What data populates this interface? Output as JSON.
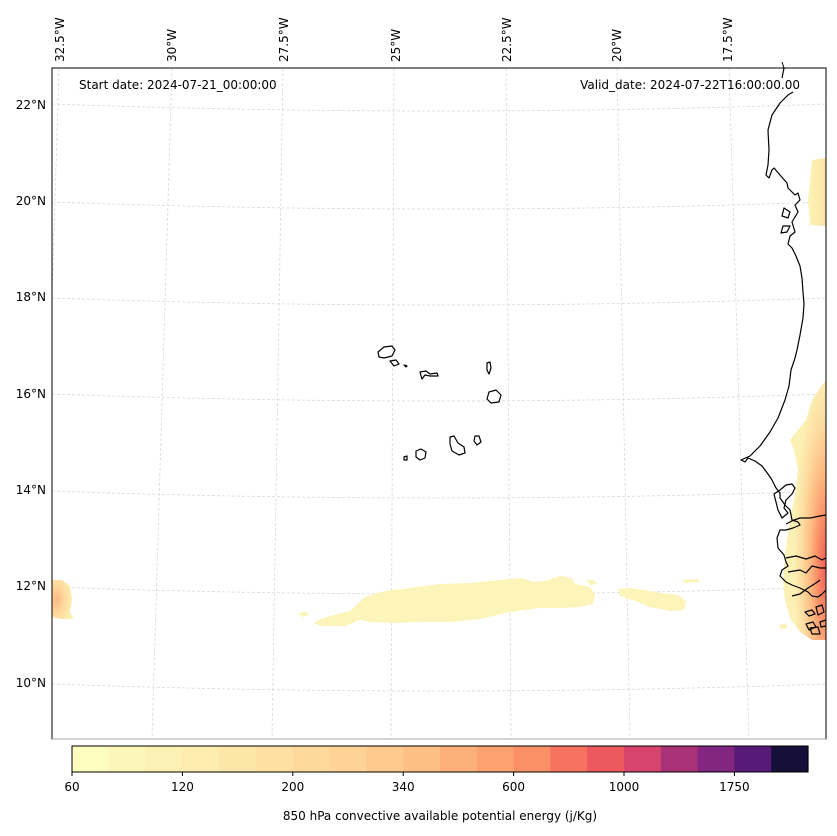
{
  "map": {
    "projection": "conic",
    "annotations": {
      "start_date": "Start date: 2024-07-21_00:00:00",
      "valid_date": "Valid_date: 2024-07-22T16:00:00.00"
    },
    "lon_labels": [
      "32.5°W",
      "30°W",
      "27.5°W",
      "25°W",
      "22.5°W",
      "20°W",
      "17.5°W"
    ],
    "lat_labels": [
      "22°N",
      "20°N",
      "18°N",
      "16°N",
      "14°N",
      "12°N",
      "10°N"
    ],
    "gridlines": true,
    "features": [
      "Cape Verde islands",
      "West African coastline (Mauritania, Senegal, Gambia, Guinea-Bissau)"
    ],
    "field": {
      "name": "850 hPa convective available potential energy",
      "regions": [
        {
          "name": "west-edge-blob",
          "approx_lat": 11.8,
          "approx_lon": -32.8,
          "max_level": 340
        },
        {
          "name": "central-band",
          "approx_lat": 11.7,
          "approx_lon_range": [
            -29.5,
            -21.0
          ],
          "max_level": 120
        },
        {
          "name": "eastern-small-patch",
          "approx_lat": 11.7,
          "approx_lon_range": [
            -20.0,
            -18.5
          ],
          "max_level": 90
        },
        {
          "name": "coastal-north-patch",
          "approx_lat_range": [
            19.0,
            20.8
          ],
          "approx_lon": -16.0,
          "max_level": 150
        },
        {
          "name": "coastal-south-plume",
          "approx_lat_range": [
            11.0,
            16.0
          ],
          "approx_lon_range": [
            -17.5,
            -15.8
          ],
          "max_level": 1000
        }
      ]
    }
  },
  "colorbar": {
    "label": "850 hPa convective available potential energy (j/Kg)",
    "tick_labels": [
      "60",
      "120",
      "200",
      "340",
      "600",
      "1000",
      "1750"
    ],
    "colors": [
      "#fcfdbf",
      "#fcf7b9",
      "#fcf1b4",
      "#fcecae",
      "#fde6a8",
      "#fde0a2",
      "#fdd99c",
      "#fed395",
      "#fec98c",
      "#febf84",
      "#feb07a",
      "#fca26f",
      "#fb8f66",
      "#f7735f",
      "#ec5a5e",
      "#d8456c",
      "#a93177",
      "#822681",
      "#561b79",
      "#150f3a"
    ]
  },
  "chart_data": {
    "type": "heatmap",
    "title": "",
    "top_annotations": [
      "Start date: 2024-07-21_00:00:00",
      "Valid_date: 2024-07-22T16:00:00.00"
    ],
    "xlabel": "",
    "ylabel": "",
    "x_ticks": [
      "32.5°W",
      "30°W",
      "27.5°W",
      "25°W",
      "22.5°W",
      "20°W",
      "17.5°W"
    ],
    "y_ticks": [
      "22°N",
      "20°N",
      "18°N",
      "16°N",
      "14°N",
      "12°N",
      "10°N"
    ],
    "x_range_deg": [
      -33.0,
      -15.5
    ],
    "y_range_deg": [
      9.0,
      22.8
    ],
    "colorbar_label": "850 hPa convective available potential energy (j/Kg)",
    "colorbar_ticks": [
      60,
      120,
      200,
      340,
      600,
      1000,
      1750
    ],
    "colormap": "magma_r",
    "grid": true
  }
}
